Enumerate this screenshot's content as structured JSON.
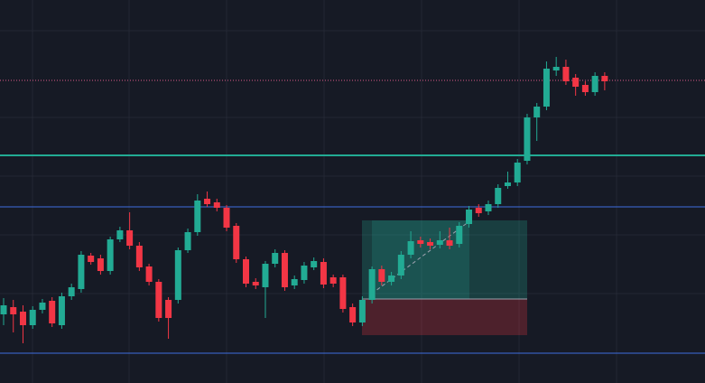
{
  "chart_data": {
    "type": "candlestick",
    "ylim": [
      0,
      424
    ],
    "up_color": "#22ab94",
    "down_color": "#f23645",
    "open": [
      76,
      84,
      79,
      64,
      81,
      91,
      64,
      96,
      104,
      141,
      138,
      124,
      159,
      169,
      152,
      129,
      112,
      92,
      92,
      147,
      167,
      204,
      200,
      194,
      174,
      137,
      112,
      106,
      132,
      144,
      108,
      114,
      128,
      134,
      117,
      117,
      84,
      67,
      92,
      126,
      112,
      119,
      142,
      158,
      156,
      153,
      158,
      154,
      176,
      194,
      190,
      198,
      218,
      222,
      246,
      294,
      306,
      346,
      350,
      338,
      330,
      322,
      340
    ],
    "close": [
      86,
      76,
      64,
      81,
      89,
      66,
      96,
      106,
      142,
      134,
      124,
      159,
      169,
      152,
      128,
      112,
      72,
      72,
      147,
      167,
      202,
      198,
      194,
      172,
      137,
      110,
      108,
      132,
      144,
      106,
      115,
      130,
      135,
      109,
      110,
      82,
      67,
      92,
      126,
      112,
      119,
      142,
      157,
      154,
      152,
      158,
      152,
      174,
      192,
      188,
      198,
      216,
      222,
      244,
      294,
      306,
      348,
      350,
      334,
      328,
      322,
      340,
      334
    ],
    "high": [
      94,
      92,
      86,
      85,
      93,
      95,
      100,
      110,
      146,
      144,
      142,
      162,
      173,
      189,
      156,
      132,
      115,
      95,
      150,
      171,
      209,
      212,
      204,
      197,
      177,
      140,
      116,
      135,
      148,
      147,
      119,
      134,
      139,
      138,
      120,
      120,
      88,
      96,
      129,
      130,
      123,
      146,
      168,
      162,
      160,
      168,
      172,
      178,
      196,
      198,
      202,
      220,
      234,
      248,
      298,
      310,
      356,
      361,
      358,
      342,
      334,
      344,
      344
    ],
    "low": [
      64,
      56,
      44,
      60,
      77,
      62,
      60,
      92,
      100,
      131,
      120,
      120,
      156,
      148,
      124,
      108,
      68,
      49,
      88,
      144,
      163,
      195,
      190,
      168,
      133,
      106,
      104,
      72,
      128,
      102,
      104,
      110,
      125,
      105,
      106,
      78,
      63,
      63,
      88,
      108,
      108,
      115,
      138,
      150,
      148,
      149,
      148,
      150,
      172,
      184,
      186,
      194,
      215,
      218,
      242,
      268,
      302,
      340,
      330,
      318,
      318,
      318,
      324
    ],
    "levels": [
      {
        "value": 335,
        "color": "#e05a8c",
        "style": "dotted"
      },
      {
        "value": 252,
        "color": "#22ab94",
        "style": "solid"
      },
      {
        "value": 195,
        "color": "#3d6ee0",
        "style": "solid"
      },
      {
        "value": 33,
        "color": "#3d6ee0",
        "style": "solid"
      }
    ]
  }
}
